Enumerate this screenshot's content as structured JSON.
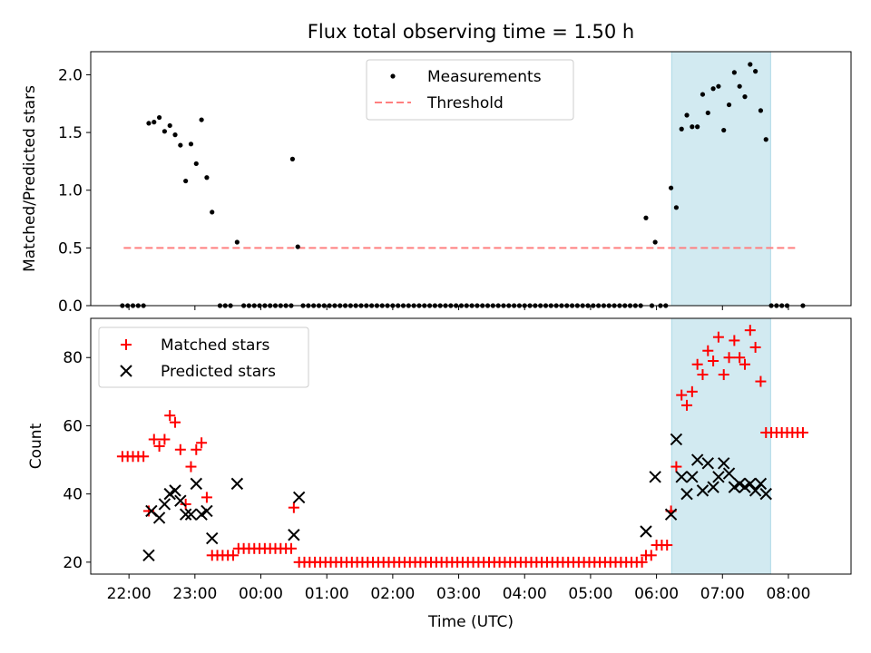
{
  "chart_data": {
    "title": "Flux total observing time = 1.50 h",
    "xlabel": "Time (UTC)",
    "x_unit": "hours since 22:00 UTC",
    "xlim": [
      -0.58,
      10.95
    ],
    "x_ticks": [
      {
        "v": 0,
        "label": "22:00"
      },
      {
        "v": 1,
        "label": "23:00"
      },
      {
        "v": 2,
        "label": "00:00"
      },
      {
        "v": 3,
        "label": "01:00"
      },
      {
        "v": 4,
        "label": "02:00"
      },
      {
        "v": 5,
        "label": "03:00"
      },
      {
        "v": 6,
        "label": "04:00"
      },
      {
        "v": 7,
        "label": "05:00"
      },
      {
        "v": 8,
        "label": "06:00"
      },
      {
        "v": 9,
        "label": "07:00"
      },
      {
        "v": 10,
        "label": "08:00"
      }
    ],
    "highlight_span": {
      "x0": 8.23,
      "x1": 9.73,
      "color": "#add8e6"
    },
    "top": {
      "type": "scatter",
      "ylabel": "Matched/Predicted stars",
      "ylim": [
        0,
        2.2
      ],
      "y_ticks": [
        {
          "v": 0,
          "label": "0.0"
        },
        {
          "v": 0.5,
          "label": "0.5"
        },
        {
          "v": 1,
          "label": "1.0"
        },
        {
          "v": 1.5,
          "label": "1.5"
        },
        {
          "v": 2,
          "label": "2.0"
        }
      ],
      "legend": {
        "position": "top-center",
        "measurements_label": "Measurements",
        "threshold_label": "Threshold"
      },
      "threshold": {
        "value": 0.5,
        "x0": -0.08,
        "x1": 10.15,
        "color": "#ff7f7f"
      },
      "measurements": [
        [
          -0.1,
          0
        ],
        [
          -0.02,
          0
        ],
        [
          0.06,
          0
        ],
        [
          0.14,
          0
        ],
        [
          0.22,
          0
        ],
        [
          0.3,
          1.58
        ],
        [
          0.38,
          1.59
        ],
        [
          0.46,
          1.63
        ],
        [
          0.54,
          1.51
        ],
        [
          0.62,
          1.56
        ],
        [
          0.7,
          1.48
        ],
        [
          0.78,
          1.39
        ],
        [
          0.86,
          1.08
        ],
        [
          0.94,
          1.4
        ],
        [
          1.02,
          1.23
        ],
        [
          1.1,
          1.61
        ],
        [
          1.18,
          1.11
        ],
        [
          1.26,
          0.81
        ],
        [
          1.38,
          0
        ],
        [
          1.46,
          0
        ],
        [
          1.54,
          0
        ],
        [
          1.64,
          0.55
        ],
        [
          1.74,
          0
        ],
        [
          1.82,
          0
        ],
        [
          1.9,
          0
        ],
        [
          1.98,
          0
        ],
        [
          2.06,
          0
        ],
        [
          2.14,
          0
        ],
        [
          2.22,
          0
        ],
        [
          2.3,
          0
        ],
        [
          2.38,
          0
        ],
        [
          2.46,
          0
        ],
        [
          2.48,
          1.27
        ],
        [
          2.56,
          0.51
        ],
        [
          2.64,
          0
        ],
        [
          2.72,
          0
        ],
        [
          2.8,
          0
        ],
        [
          2.88,
          0
        ],
        [
          2.96,
          0
        ],
        [
          3.04,
          0
        ],
        [
          3.12,
          0
        ],
        [
          3.2,
          0
        ],
        [
          3.28,
          0
        ],
        [
          3.36,
          0
        ],
        [
          3.44,
          0
        ],
        [
          3.52,
          0
        ],
        [
          3.6,
          0
        ],
        [
          3.68,
          0
        ],
        [
          3.76,
          0
        ],
        [
          3.84,
          0
        ],
        [
          3.92,
          0
        ],
        [
          4.0,
          0
        ],
        [
          4.08,
          0
        ],
        [
          4.16,
          0
        ],
        [
          4.24,
          0
        ],
        [
          4.32,
          0
        ],
        [
          4.4,
          0
        ],
        [
          4.48,
          0
        ],
        [
          4.56,
          0
        ],
        [
          4.64,
          0
        ],
        [
          4.72,
          0
        ],
        [
          4.8,
          0
        ],
        [
          4.88,
          0
        ],
        [
          4.96,
          0
        ],
        [
          5.04,
          0
        ],
        [
          5.12,
          0
        ],
        [
          5.2,
          0
        ],
        [
          5.28,
          0
        ],
        [
          5.36,
          0
        ],
        [
          5.44,
          0
        ],
        [
          5.52,
          0
        ],
        [
          5.6,
          0
        ],
        [
          5.68,
          0
        ],
        [
          5.76,
          0
        ],
        [
          5.84,
          0
        ],
        [
          5.92,
          0
        ],
        [
          6.0,
          0
        ],
        [
          6.08,
          0
        ],
        [
          6.16,
          0
        ],
        [
          6.24,
          0
        ],
        [
          6.32,
          0
        ],
        [
          6.4,
          0
        ],
        [
          6.48,
          0
        ],
        [
          6.56,
          0
        ],
        [
          6.64,
          0
        ],
        [
          6.72,
          0
        ],
        [
          6.8,
          0
        ],
        [
          6.88,
          0
        ],
        [
          6.96,
          0
        ],
        [
          7.04,
          0
        ],
        [
          7.12,
          0
        ],
        [
          7.2,
          0
        ],
        [
          7.28,
          0
        ],
        [
          7.36,
          0
        ],
        [
          7.44,
          0
        ],
        [
          7.52,
          0
        ],
        [
          7.6,
          0
        ],
        [
          7.68,
          0
        ],
        [
          7.76,
          0
        ],
        [
          7.84,
          0.76
        ],
        [
          7.93,
          0
        ],
        [
          7.98,
          0.55
        ],
        [
          8.06,
          0
        ],
        [
          8.14,
          0
        ],
        [
          8.22,
          1.02
        ],
        [
          8.3,
          0.85
        ],
        [
          8.38,
          1.53
        ],
        [
          8.46,
          1.65
        ],
        [
          8.54,
          1.55
        ],
        [
          8.62,
          1.55
        ],
        [
          8.7,
          1.83
        ],
        [
          8.78,
          1.67
        ],
        [
          8.86,
          1.88
        ],
        [
          8.94,
          1.9
        ],
        [
          9.02,
          1.52
        ],
        [
          9.1,
          1.74
        ],
        [
          9.18,
          2.02
        ],
        [
          9.26,
          1.9
        ],
        [
          9.34,
          1.81
        ],
        [
          9.42,
          2.09
        ],
        [
          9.5,
          2.03
        ],
        [
          9.58,
          1.69
        ],
        [
          9.66,
          1.44
        ],
        [
          9.74,
          0
        ],
        [
          9.82,
          0
        ],
        [
          9.9,
          0
        ],
        [
          9.98,
          0
        ],
        [
          10.22,
          0
        ]
      ]
    },
    "bottom": {
      "type": "scatter",
      "ylabel": "Count",
      "ylim": [
        16.5,
        91.5
      ],
      "y_ticks": [
        {
          "v": 20,
          "label": "20"
        },
        {
          "v": 40,
          "label": "40"
        },
        {
          "v": 60,
          "label": "60"
        },
        {
          "v": 80,
          "label": "80"
        }
      ],
      "legend": {
        "position": "top-left",
        "matched_label": "Matched stars",
        "predicted_label": "Predicted stars"
      },
      "matched_color": "#ff0000",
      "predicted_color": "#000000",
      "matched": [
        [
          -0.1,
          51
        ],
        [
          -0.02,
          51
        ],
        [
          0.06,
          51
        ],
        [
          0.14,
          51
        ],
        [
          0.22,
          51
        ],
        [
          0.3,
          35
        ],
        [
          0.38,
          56
        ],
        [
          0.46,
          54
        ],
        [
          0.54,
          56
        ],
        [
          0.62,
          63
        ],
        [
          0.7,
          61
        ],
        [
          0.78,
          53
        ],
        [
          0.86,
          37
        ],
        [
          0.94,
          48
        ],
        [
          1.02,
          53
        ],
        [
          1.1,
          55
        ],
        [
          1.18,
          39
        ],
        [
          1.26,
          22
        ],
        [
          1.34,
          22
        ],
        [
          1.42,
          22
        ],
        [
          1.5,
          22
        ],
        [
          1.58,
          22
        ],
        [
          1.66,
          24
        ],
        [
          1.74,
          24
        ],
        [
          1.82,
          24
        ],
        [
          1.9,
          24
        ],
        [
          1.98,
          24
        ],
        [
          2.06,
          24
        ],
        [
          2.14,
          24
        ],
        [
          2.22,
          24
        ],
        [
          2.3,
          24
        ],
        [
          2.38,
          24
        ],
        [
          2.46,
          24
        ],
        [
          2.5,
          36
        ],
        [
          2.58,
          20
        ],
        [
          2.66,
          20
        ],
        [
          2.74,
          20
        ],
        [
          2.82,
          20
        ],
        [
          2.9,
          20
        ],
        [
          2.98,
          20
        ],
        [
          3.06,
          20
        ],
        [
          3.14,
          20
        ],
        [
          3.22,
          20
        ],
        [
          3.3,
          20
        ],
        [
          3.38,
          20
        ],
        [
          3.46,
          20
        ],
        [
          3.54,
          20
        ],
        [
          3.62,
          20
        ],
        [
          3.7,
          20
        ],
        [
          3.78,
          20
        ],
        [
          3.86,
          20
        ],
        [
          3.94,
          20
        ],
        [
          4.02,
          20
        ],
        [
          4.1,
          20
        ],
        [
          4.18,
          20
        ],
        [
          4.26,
          20
        ],
        [
          4.34,
          20
        ],
        [
          4.42,
          20
        ],
        [
          4.5,
          20
        ],
        [
          4.58,
          20
        ],
        [
          4.66,
          20
        ],
        [
          4.74,
          20
        ],
        [
          4.82,
          20
        ],
        [
          4.9,
          20
        ],
        [
          4.98,
          20
        ],
        [
          5.06,
          20
        ],
        [
          5.14,
          20
        ],
        [
          5.22,
          20
        ],
        [
          5.3,
          20
        ],
        [
          5.38,
          20
        ],
        [
          5.46,
          20
        ],
        [
          5.54,
          20
        ],
        [
          5.62,
          20
        ],
        [
          5.7,
          20
        ],
        [
          5.78,
          20
        ],
        [
          5.86,
          20
        ],
        [
          5.94,
          20
        ],
        [
          6.02,
          20
        ],
        [
          6.1,
          20
        ],
        [
          6.18,
          20
        ],
        [
          6.26,
          20
        ],
        [
          6.34,
          20
        ],
        [
          6.42,
          20
        ],
        [
          6.5,
          20
        ],
        [
          6.58,
          20
        ],
        [
          6.66,
          20
        ],
        [
          6.74,
          20
        ],
        [
          6.82,
          20
        ],
        [
          6.9,
          20
        ],
        [
          6.98,
          20
        ],
        [
          7.06,
          20
        ],
        [
          7.14,
          20
        ],
        [
          7.22,
          20
        ],
        [
          7.3,
          20
        ],
        [
          7.38,
          20
        ],
        [
          7.46,
          20
        ],
        [
          7.54,
          20
        ],
        [
          7.62,
          20
        ],
        [
          7.7,
          20
        ],
        [
          7.78,
          20
        ],
        [
          7.84,
          22
        ],
        [
          7.92,
          22
        ],
        [
          8.0,
          25
        ],
        [
          8.08,
          25
        ],
        [
          8.16,
          25
        ],
        [
          8.22,
          35
        ],
        [
          8.3,
          48
        ],
        [
          8.38,
          69
        ],
        [
          8.46,
          66
        ],
        [
          8.54,
          70
        ],
        [
          8.62,
          78
        ],
        [
          8.7,
          75
        ],
        [
          8.78,
          82
        ],
        [
          8.86,
          79
        ],
        [
          8.94,
          86
        ],
        [
          9.02,
          75
        ],
        [
          9.1,
          80
        ],
        [
          9.18,
          85
        ],
        [
          9.26,
          80
        ],
        [
          9.34,
          78
        ],
        [
          9.42,
          88
        ],
        [
          9.5,
          83
        ],
        [
          9.58,
          73
        ],
        [
          9.66,
          58
        ],
        [
          9.74,
          58
        ],
        [
          9.82,
          58
        ],
        [
          9.9,
          58
        ],
        [
          9.98,
          58
        ],
        [
          10.06,
          58
        ],
        [
          10.14,
          58
        ],
        [
          10.22,
          58
        ]
      ],
      "predicted": [
        [
          0.3,
          22
        ],
        [
          0.34,
          35
        ],
        [
          0.46,
          33
        ],
        [
          0.54,
          37
        ],
        [
          0.62,
          40
        ],
        [
          0.7,
          41
        ],
        [
          0.78,
          38
        ],
        [
          0.86,
          34
        ],
        [
          0.94,
          34
        ],
        [
          1.02,
          43
        ],
        [
          1.1,
          34
        ],
        [
          1.18,
          35
        ],
        [
          1.26,
          27
        ],
        [
          1.64,
          43
        ],
        [
          2.5,
          28
        ],
        [
          2.58,
          39
        ],
        [
          7.84,
          29
        ],
        [
          7.98,
          45
        ],
        [
          8.22,
          34
        ],
        [
          8.3,
          56
        ],
        [
          8.38,
          45
        ],
        [
          8.46,
          40
        ],
        [
          8.54,
          45
        ],
        [
          8.62,
          50
        ],
        [
          8.7,
          41
        ],
        [
          8.78,
          49
        ],
        [
          8.86,
          42
        ],
        [
          8.94,
          45
        ],
        [
          9.02,
          49
        ],
        [
          9.1,
          46
        ],
        [
          9.18,
          42
        ],
        [
          9.26,
          43
        ],
        [
          9.34,
          42
        ],
        [
          9.42,
          43
        ],
        [
          9.5,
          41
        ],
        [
          9.58,
          43
        ],
        [
          9.66,
          40
        ]
      ]
    }
  }
}
